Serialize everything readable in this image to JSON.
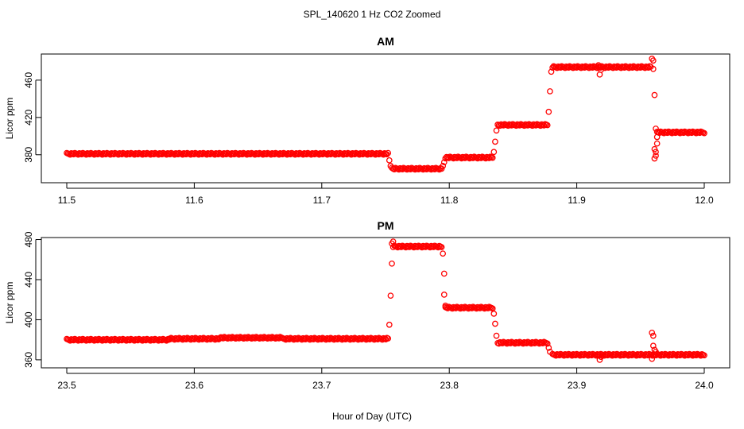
{
  "figure": {
    "title": "SPL_140620  1 Hz CO2 Zoomed",
    "xlabel": "Hour of Day (UTC)"
  },
  "chart_data": [
    {
      "type": "scatter",
      "title": "AM",
      "ylabel": "Licor ppm",
      "xlabel": "Hour of Day (UTC)",
      "xlim": [
        11.5,
        12.0
      ],
      "ylim": [
        350,
        488
      ],
      "xticks": [
        "11.5",
        "11.6",
        "11.7",
        "11.8",
        "11.9",
        "12.0"
      ],
      "xtick_values": [
        11.5,
        11.6,
        11.7,
        11.8,
        11.9,
        12.0
      ],
      "yticks": [
        "380",
        "420",
        "460"
      ],
      "ytick_values": [
        380,
        420,
        460
      ],
      "grid": false,
      "marker_color": "#ff0000",
      "series": [
        {
          "segments": [
            {
              "x0": 11.5,
              "x1": 11.752,
              "y": 381
            },
            {
              "x0": 11.756,
              "x1": 11.794,
              "y": 365
            },
            {
              "x0": 11.797,
              "x1": 11.834,
              "y": 377
            },
            {
              "x0": 11.838,
              "x1": 11.877,
              "y": 412
            },
            {
              "x0": 11.881,
              "x1": 11.958,
              "y": 474
            },
            {
              "x0": 11.963,
              "x1": 12.0,
              "y": 404
            }
          ],
          "points": [
            [
              11.753,
              374
            ],
            [
              11.754,
              368
            ],
            [
              11.755,
              366
            ],
            [
              11.795,
              368
            ],
            [
              11.796,
              372
            ],
            [
              11.835,
              383
            ],
            [
              11.836,
              394
            ],
            [
              11.837,
              406
            ],
            [
              11.878,
              426
            ],
            [
              11.879,
              448
            ],
            [
              11.88,
              469
            ],
            [
              11.917,
              476
            ],
            [
              11.918,
              466
            ],
            [
              11.919,
              471
            ],
            [
              11.959,
              483
            ],
            [
              11.96,
              481
            ],
            [
              11.961,
              444
            ],
            [
              11.962,
              408
            ],
            [
              11.961,
              386
            ],
            [
              11.962,
              383
            ],
            [
              11.962,
              379
            ],
            [
              11.963,
              392
            ],
            [
              11.963,
              399
            ],
            [
              11.961,
              376
            ],
            [
              11.96,
              472
            ]
          ]
        }
      ]
    },
    {
      "type": "scatter",
      "title": "PM",
      "ylabel": "Licor ppm",
      "xlabel": "Hour of Day (UTC)",
      "xlim": [
        23.5,
        24.0
      ],
      "ylim": [
        352,
        482
      ],
      "xticks": [
        "23.5",
        "23.6",
        "23.7",
        "23.8",
        "23.9",
        "24.0"
      ],
      "xtick_values": [
        23.5,
        23.6,
        23.7,
        23.8,
        23.9,
        24.0
      ],
      "yticks": [
        "360",
        "400",
        "440",
        "480"
      ],
      "ytick_values": [
        360,
        400,
        440,
        480
      ],
      "grid": false,
      "marker_color": "#ff0000",
      "series": [
        {
          "segments": [
            {
              "x0": 23.5,
              "x1": 23.58,
              "y": 380
            },
            {
              "x0": 23.58,
              "x1": 23.62,
              "y": 381
            },
            {
              "x0": 23.62,
              "x1": 23.67,
              "y": 382
            },
            {
              "x0": 23.67,
              "x1": 23.752,
              "y": 381
            },
            {
              "x0": 23.756,
              "x1": 23.794,
              "y": 473
            },
            {
              "x0": 23.797,
              "x1": 23.834,
              "y": 412
            },
            {
              "x0": 23.838,
              "x1": 23.877,
              "y": 377
            },
            {
              "x0": 23.881,
              "x1": 24.0,
              "y": 365
            }
          ],
          "points": [
            [
              23.753,
              395
            ],
            [
              23.754,
              424
            ],
            [
              23.755,
              456
            ],
            [
              23.755,
              476
            ],
            [
              23.756,
              478
            ],
            [
              23.795,
              466
            ],
            [
              23.796,
              446
            ],
            [
              23.796,
              425
            ],
            [
              23.797,
              414
            ],
            [
              23.835,
              406
            ],
            [
              23.836,
              396
            ],
            [
              23.837,
              384
            ],
            [
              23.878,
              372
            ],
            [
              23.879,
              368
            ],
            [
              23.918,
              360
            ],
            [
              23.919,
              363
            ],
            [
              23.959,
              387
            ],
            [
              23.96,
              384
            ],
            [
              23.96,
              374
            ],
            [
              23.961,
              370
            ],
            [
              23.959,
              361
            ],
            [
              23.962,
              368
            ]
          ]
        }
      ]
    }
  ]
}
